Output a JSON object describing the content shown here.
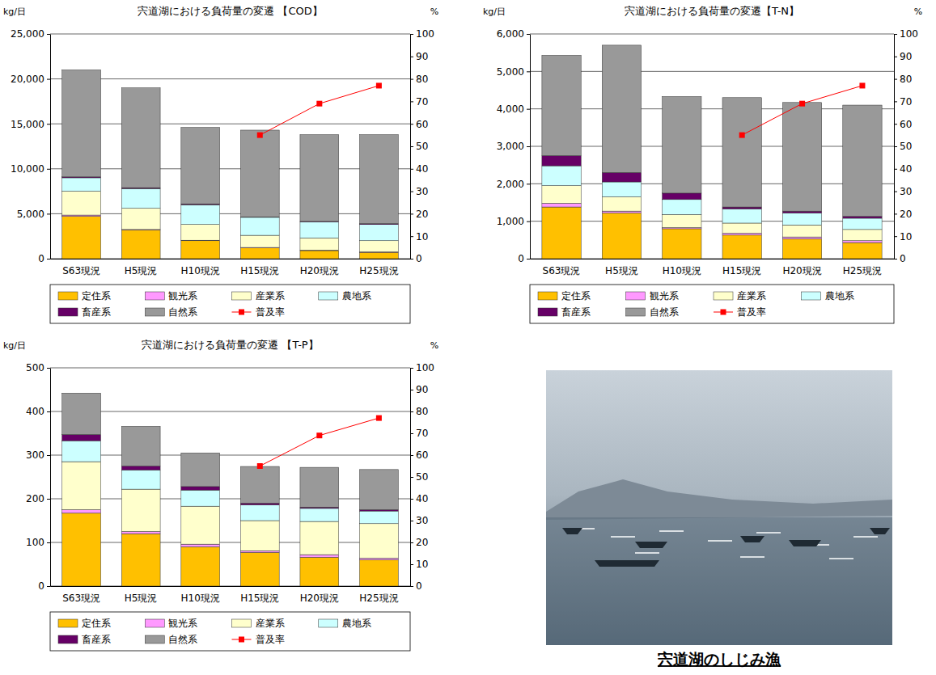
{
  "chart_data": [
    {
      "type": "bar",
      "stacked": true,
      "title": "宍道湖における負荷量の変遷 【COD】",
      "y_label": "kg/日",
      "y2_label": "%",
      "categories": [
        "S63現況",
        "H5現況",
        "H10現況",
        "H15現況",
        "H20現況",
        "H25現況"
      ],
      "series": [
        {
          "name": "定住系",
          "color": "#ffc000",
          "values": [
            4700,
            3200,
            2000,
            1200,
            900,
            700
          ]
        },
        {
          "name": "観光系",
          "color": "#ff99ff",
          "values": [
            150,
            50,
            50,
            50,
            50,
            50
          ]
        },
        {
          "name": "産業系",
          "color": "#ffffcc",
          "values": [
            2650,
            2350,
            1750,
            1350,
            1350,
            1250
          ]
        },
        {
          "name": "農地系",
          "color": "#ccffff",
          "values": [
            1500,
            2200,
            2200,
            2000,
            1800,
            1800
          ]
        },
        {
          "name": "畜産系",
          "color": "#660066",
          "values": [
            100,
            100,
            100,
            50,
            50,
            100
          ]
        },
        {
          "name": "自然系",
          "color": "#999999",
          "values": [
            11900,
            11100,
            8500,
            9650,
            9650,
            9900
          ]
        },
        {
          "name": "普及率",
          "type": "line",
          "axis": "y2",
          "color": "#ff0000",
          "marker": "square",
          "values": [
            null,
            null,
            null,
            55,
            69,
            77
          ]
        }
      ],
      "ylim": [
        0,
        25000
      ],
      "yticks": [
        0,
        {
          "value": 5000,
          "label": "5,000"
        },
        {
          "value": 10000,
          "label": "10,000"
        },
        {
          "value": 15000,
          "label": "15,000"
        },
        {
          "value": 20000,
          "label": "20,000"
        },
        {
          "value": 25000,
          "label": "25,000"
        }
      ],
      "y2lim": [
        0,
        100
      ],
      "y2ticks": [
        0,
        10,
        20,
        30,
        40,
        50,
        60,
        70,
        80,
        90,
        100
      ],
      "grid": true,
      "legend": "bottom"
    },
    {
      "type": "bar",
      "stacked": true,
      "title": "宍道湖における負荷量の変遷【T-N】",
      "y_label": "kg/日",
      "y2_label": "%",
      "categories": [
        "S63現況",
        "H5現況",
        "H10現況",
        "H15現況",
        "H20現況",
        "H25現況"
      ],
      "series": [
        {
          "name": "定住系",
          "color": "#ffc000",
          "values": [
            1380,
            1220,
            800,
            630,
            530,
            430
          ]
        },
        {
          "name": "観光系",
          "color": "#ff99ff",
          "values": [
            100,
            50,
            30,
            50,
            50,
            50
          ]
        },
        {
          "name": "産業系",
          "color": "#ffffcc",
          "values": [
            470,
            380,
            350,
            270,
            320,
            300
          ]
        },
        {
          "name": "農地系",
          "color": "#ccffff",
          "values": [
            530,
            400,
            400,
            380,
            320,
            300
          ]
        },
        {
          "name": "畜産系",
          "color": "#660066",
          "values": [
            270,
            250,
            170,
            50,
            50,
            50
          ]
        },
        {
          "name": "自然系",
          "color": "#999999",
          "values": [
            2680,
            3400,
            2580,
            2920,
            2900,
            2970
          ]
        },
        {
          "name": "普及率",
          "type": "line",
          "axis": "y2",
          "color": "#ff0000",
          "marker": "square",
          "values": [
            null,
            null,
            null,
            55,
            69,
            77
          ]
        }
      ],
      "ylim": [
        0,
        6000
      ],
      "yticks": [
        0,
        {
          "value": 1000,
          "label": "1,000"
        },
        {
          "value": 2000,
          "label": "2,000"
        },
        {
          "value": 3000,
          "label": "3,000"
        },
        {
          "value": 4000,
          "label": "4,000"
        },
        {
          "value": 5000,
          "label": "5,000"
        },
        {
          "value": 6000,
          "label": "6,000"
        }
      ],
      "y2lim": [
        0,
        100
      ],
      "y2ticks": [
        0,
        10,
        20,
        30,
        40,
        50,
        60,
        70,
        80,
        90,
        100
      ],
      "grid": true,
      "legend": "bottom"
    },
    {
      "type": "bar",
      "stacked": true,
      "title": "宍道湖における負荷量の変遷 【T-P】",
      "y_label": "kg/日",
      "y2_label": "%",
      "categories": [
        "S63現況",
        "H5現況",
        "H10現況",
        "H15現況",
        "H20現況",
        "H25現況"
      ],
      "series": [
        {
          "name": "定住系",
          "color": "#ffc000",
          "values": [
            167,
            120,
            90,
            77,
            66,
            60
          ]
        },
        {
          "name": "観光系",
          "color": "#ff99ff",
          "values": [
            8,
            5,
            6,
            4,
            6,
            4
          ]
        },
        {
          "name": "産業系",
          "color": "#ffffcc",
          "values": [
            110,
            97,
            87,
            69,
            76,
            79
          ]
        },
        {
          "name": "農地系",
          "color": "#ccffff",
          "values": [
            48,
            44,
            37,
            36,
            30,
            29
          ]
        },
        {
          "name": "畜産系",
          "color": "#660066",
          "values": [
            14,
            9,
            8,
            4,
            3,
            3
          ]
        },
        {
          "name": "自然系",
          "color": "#999999",
          "values": [
            95,
            91,
            77,
            84,
            91,
            92
          ]
        },
        {
          "name": "普及率",
          "type": "line",
          "axis": "y2",
          "color": "#ff0000",
          "marker": "square",
          "values": [
            null,
            null,
            null,
            55,
            69,
            77
          ]
        }
      ],
      "ylim": [
        0,
        500
      ],
      "yticks": [
        0,
        100,
        200,
        300,
        400,
        500
      ],
      "y2lim": [
        0,
        100
      ],
      "y2ticks": [
        0,
        10,
        20,
        30,
        40,
        50,
        60,
        70,
        80,
        90,
        100
      ],
      "grid": true,
      "legend": "bottom"
    }
  ],
  "photo": {
    "caption": "宍道湖のしじみ漁"
  }
}
